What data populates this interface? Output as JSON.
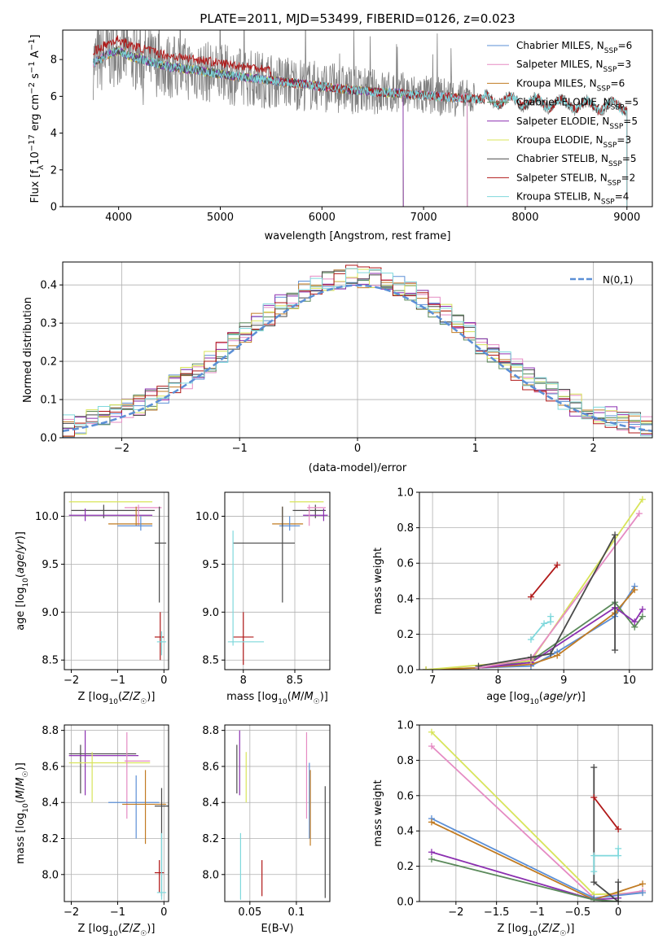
{
  "colors": {
    "Chabrier MILES": "#5b8fd6",
    "Salpeter MILES": "#e58bc3",
    "Kroupa MILES": "#c17b22",
    "Chabrier ELODIE": "#5b8a5b",
    "Salpeter ELODIE": "#8b2fb0",
    "Kroupa ELODIE": "#d8e45a",
    "Chabrier STELIB": "#4a4a4a",
    "Salpeter STELIB": "#b01818",
    "Kroupa STELIB": "#7fd8dc",
    "data": "#808080",
    "gauss": "#5b8fd6"
  },
  "chart_data": [
    {
      "id": "spectrum",
      "type": "line",
      "title": "PLATE=2011, MJD=53499, FIBERID=0126, z=0.023",
      "xlabel": "wavelength [Angstrom, rest frame]",
      "ylabel": "Flux [f_λ 10^-17 erg cm^-2 s^-1 A^-1]",
      "xlim": [
        3450,
        9250
      ],
      "ylim": [
        0,
        9.6
      ],
      "xticks": [
        4000,
        5000,
        6000,
        7000,
        8000,
        9000
      ],
      "yticks": [
        0,
        2,
        4,
        6,
        8
      ],
      "grid": false,
      "legend_position": "top-right",
      "legend": [
        {
          "label": "Chabrier MILES, N",
          "sub": "SSP",
          "suffix": "=6",
          "color": "Chabrier MILES"
        },
        {
          "label": "Salpeter MILES, N",
          "sub": "SSP",
          "suffix": "=3",
          "color": "Salpeter MILES"
        },
        {
          "label": "Kroupa MILES, N",
          "sub": "SSP",
          "suffix": "=6",
          "color": "Kroupa MILES"
        },
        {
          "label": "Chabrier ELODIE, N",
          "sub": "SSP",
          "suffix": "=5",
          "color": "Chabrier ELODIE"
        },
        {
          "label": "Salpeter ELODIE, N",
          "sub": "SSP",
          "suffix": "=5",
          "color": "Salpeter ELODIE"
        },
        {
          "label": "Kroupa ELODIE, N",
          "sub": "SSP",
          "suffix": "=3",
          "color": "Kroupa ELODIE"
        },
        {
          "label": "Chabrier STELIB, N",
          "sub": "SSP",
          "suffix": "=5",
          "color": "Chabrier STELIB"
        },
        {
          "label": "Salpeter STELIB, N",
          "sub": "SSP",
          "suffix": "=2",
          "color": "Salpeter STELIB"
        },
        {
          "label": "Kroupa STELIB, N",
          "sub": "SSP",
          "suffix": "=4",
          "color": "Kroupa STELIB"
        }
      ],
      "model_continuum": {
        "x": [
          3750,
          3900,
          4000,
          4100,
          4300,
          4500,
          4800,
          5000,
          5300,
          5600,
          5900,
          6200,
          6500,
          6800,
          7100,
          7400,
          7700,
          8000,
          8300,
          8600,
          8900,
          9000
        ],
        "y": [
          7.8,
          8.3,
          8.5,
          8.2,
          7.9,
          7.6,
          7.4,
          7.2,
          7.0,
          6.8,
          6.6,
          6.4,
          6.25,
          6.15,
          6.0,
          5.9,
          5.8,
          5.7,
          5.6,
          5.5,
          5.45,
          5.4
        ]
      },
      "model_ranges": {
        "MILES": [
          3750,
          7430
        ],
        "ELODIE": [
          3900,
          6800
        ],
        "STELIB": [
          3750,
          9000
        ]
      },
      "data_range": [
        3750,
        9000
      ]
    },
    {
      "id": "residuals",
      "type": "bar",
      "xlabel": "(data-model)/error",
      "ylabel": "Normed distribution",
      "xlim": [
        -2.5,
        2.5
      ],
      "ylim": [
        0,
        0.46
      ],
      "xticks": [
        -2,
        -1,
        0,
        1,
        2
      ],
      "yticks": [
        0.0,
        0.1,
        0.2,
        0.3,
        0.4
      ],
      "grid": true,
      "legend_position": "top-right",
      "gauss_label": "N(0,1)",
      "bin_width": 0.1,
      "bin_start": -2.5
    },
    {
      "id": "age-Z",
      "type": "scatter",
      "xlabel": "Z [log10(Z/Z☉)]",
      "ylabel": "age [log10(age/yr)]",
      "xlim": [
        -2.15,
        0.1
      ],
      "ylim": [
        8.4,
        10.25
      ],
      "xticks": [
        -2,
        -1,
        0
      ],
      "yticks": [
        8.5,
        9.0,
        9.5,
        10.0
      ],
      "grid": true,
      "points": [
        {
          "m": "Kroupa ELODIE",
          "x": -1.55,
          "y": 10.15,
          "xe": [
            -2.05,
            -0.25
          ],
          "ye": [
            10.15,
            10.15
          ]
        },
        {
          "m": "Chabrier STELIB",
          "x": -1.3,
          "y": 10.06,
          "xe": [
            -2.0,
            -0.2
          ],
          "ye": [
            9.98,
            10.12
          ]
        },
        {
          "m": "Salpeter ELODIE",
          "x": -1.7,
          "y": 10.01,
          "xe": [
            -2.05,
            -0.25
          ],
          "ye": [
            9.95,
            10.08
          ]
        },
        {
          "m": "Salpeter MILES",
          "x": -0.55,
          "y": 10.09,
          "xe": [
            -0.85,
            -0.05
          ],
          "ye": [
            9.9,
            10.12
          ]
        },
        {
          "m": "Kroupa MILES",
          "x": -0.6,
          "y": 9.92,
          "xe": [
            -1.2,
            -0.25
          ],
          "ye": [
            9.9,
            10.1
          ]
        },
        {
          "m": "Chabrier MILES",
          "x": -0.5,
          "y": 9.9,
          "xe": [
            -1.0,
            -0.25
          ],
          "ye": [
            9.85,
            10.0
          ]
        },
        {
          "m": "Chabrier STELIB",
          "x": -0.1,
          "y": 9.72,
          "xe": [
            -0.2,
            0.05
          ],
          "ye": [
            9.1,
            10.1
          ]
        },
        {
          "m": "Salpeter STELIB",
          "x": -0.08,
          "y": 8.74,
          "xe": [
            -0.2,
            0.0
          ],
          "ye": [
            8.5,
            9.0
          ]
        },
        {
          "m": "Kroupa STELIB",
          "x": -0.05,
          "y": 8.69,
          "xe": [
            -0.15,
            0.05
          ],
          "ye": [
            8.55,
            8.8
          ]
        }
      ]
    },
    {
      "id": "age-mass",
      "type": "scatter",
      "xlabel": "mass [log10(M/M☉)]",
      "ylabel": "",
      "xlim": [
        7.82,
        8.84
      ],
      "ylim": [
        8.4,
        10.25
      ],
      "xticks": [
        8.0,
        8.5
      ],
      "yticks": [
        8.5,
        9.0,
        9.5,
        10.0
      ],
      "grid": true,
      "points": [
        {
          "m": "Kroupa ELODIE",
          "x": 8.62,
          "y": 10.15,
          "xe": [
            8.45,
            8.78
          ],
          "ye": [
            10.15,
            10.15
          ]
        },
        {
          "m": "Chabrier STELIB",
          "x": 8.7,
          "y": 10.06,
          "xe": [
            8.48,
            8.8
          ],
          "ye": [
            9.98,
            10.12
          ]
        },
        {
          "m": "Salpeter ELODIE",
          "x": 8.78,
          "y": 10.01,
          "xe": [
            8.58,
            8.82
          ],
          "ye": [
            9.95,
            10.08
          ]
        },
        {
          "m": "Salpeter MILES",
          "x": 8.64,
          "y": 10.09,
          "xe": [
            8.62,
            8.8
          ],
          "ye": [
            9.9,
            10.12
          ]
        },
        {
          "m": "Kroupa MILES",
          "x": 8.38,
          "y": 9.92,
          "xe": [
            8.28,
            8.58
          ],
          "ye": [
            9.9,
            10.1
          ]
        },
        {
          "m": "Chabrier MILES",
          "x": 8.45,
          "y": 9.9,
          "xe": [
            8.35,
            8.55
          ],
          "ye": [
            9.85,
            10.0
          ]
        },
        {
          "m": "Chabrier STELIB",
          "x": 8.38,
          "y": 9.72,
          "xe": [
            7.9,
            8.5
          ],
          "ye": [
            9.1,
            10.1
          ]
        },
        {
          "m": "Salpeter STELIB",
          "x": 8.0,
          "y": 8.74,
          "xe": [
            7.9,
            8.1
          ],
          "ye": [
            8.45,
            9.0
          ]
        },
        {
          "m": "Kroupa STELIB",
          "x": 7.9,
          "y": 8.69,
          "xe": [
            7.85,
            8.2
          ],
          "ye": [
            8.65,
            9.85
          ]
        }
      ]
    },
    {
      "id": "weight-age",
      "type": "line",
      "xlabel": "age [log10(age/yr)]",
      "ylabel": "mass weight",
      "xlim": [
        6.8,
        10.35
      ],
      "ylim": [
        0,
        1.0
      ],
      "xticks": [
        7,
        8,
        9,
        10
      ],
      "yticks": [
        0.0,
        0.2,
        0.4,
        0.6,
        0.8,
        1.0
      ],
      "grid": true,
      "series": [
        {
          "m": "Chabrier MILES",
          "x": [
            6.9,
            7.7,
            8.5,
            8.9,
            9.78,
            10.08
          ],
          "y": [
            0.0,
            0.01,
            0.02,
            0.1,
            0.3,
            0.47
          ]
        },
        {
          "m": "Kroupa MILES",
          "x": [
            6.9,
            7.7,
            8.5,
            8.9,
            9.78,
            10.08
          ],
          "y": [
            0.0,
            0.01,
            0.03,
            0.08,
            0.32,
            0.45
          ]
        },
        {
          "m": "Chabrier ELODIE",
          "x": [
            7.7,
            8.5,
            9.78,
            10.08,
            10.2
          ],
          "y": [
            0.01,
            0.05,
            0.38,
            0.24,
            0.3
          ]
        },
        {
          "m": "Salpeter ELODIE",
          "x": [
            7.7,
            8.5,
            9.78,
            10.08,
            10.2
          ],
          "y": [
            0.01,
            0.04,
            0.35,
            0.27,
            0.34
          ]
        },
        {
          "m": "Kroupa ELODIE",
          "x": [
            6.9,
            8.5,
            10.2
          ],
          "y": [
            0.0,
            0.05,
            0.96
          ]
        },
        {
          "m": "Salpeter MILES",
          "x": [
            7.7,
            8.5,
            10.15
          ],
          "y": [
            0.01,
            0.06,
            0.88
          ]
        },
        {
          "m": "Chabrier STELIB",
          "x": [
            7.7,
            8.5,
            8.8,
            9.78,
            9.78
          ],
          "y": [
            0.02,
            0.07,
            0.09,
            0.76,
            0.11
          ]
        },
        {
          "m": "Salpeter STELIB",
          "x": [
            8.5,
            8.9
          ],
          "y": [
            0.41,
            0.59
          ]
        },
        {
          "m": "Kroupa STELIB",
          "x": [
            8.5,
            8.7,
            8.8,
            8.8
          ],
          "y": [
            0.17,
            0.26,
            0.27,
            0.3
          ]
        }
      ]
    },
    {
      "id": "mass-Z",
      "type": "scatter",
      "xlabel": "Z [log10(Z/Z☉)]",
      "ylabel": "mass [log10(M/M☉)]",
      "xlim": [
        -2.15,
        0.1
      ],
      "ylim": [
        7.85,
        8.83
      ],
      "xticks": [
        -2,
        -1,
        0
      ],
      "yticks": [
        8.0,
        8.2,
        8.4,
        8.6,
        8.8
      ],
      "grid": true,
      "points": [
        {
          "m": "Chabrier STELIB",
          "x": -1.8,
          "y": 8.67,
          "xe": [
            -2.05,
            -0.6
          ],
          "ye": [
            8.45,
            8.72
          ]
        },
        {
          "m": "Salpeter ELODIE",
          "x": -1.7,
          "y": 8.66,
          "xe": [
            -2.05,
            -0.55
          ],
          "ye": [
            8.44,
            8.8
          ]
        },
        {
          "m": "Kroupa ELODIE",
          "x": -1.55,
          "y": 8.62,
          "xe": [
            -2.05,
            -0.3
          ],
          "ye": [
            8.4,
            8.68
          ]
        },
        {
          "m": "Salpeter MILES",
          "x": -0.8,
          "y": 8.63,
          "xe": [
            -0.85,
            -0.3
          ],
          "ye": [
            8.31,
            8.79
          ]
        },
        {
          "m": "Chabrier MILES",
          "x": -0.6,
          "y": 8.4,
          "xe": [
            -1.2,
            -0.1
          ],
          "ye": [
            8.2,
            8.55
          ]
        },
        {
          "m": "Kroupa MILES",
          "x": -0.4,
          "y": 8.39,
          "xe": [
            -0.9,
            0.05
          ],
          "ye": [
            8.17,
            8.58
          ]
        },
        {
          "m": "Chabrier STELIB",
          "x": -0.05,
          "y": 8.38,
          "xe": [
            -0.2,
            0.1
          ],
          "ye": [
            7.88,
            8.48
          ]
        },
        {
          "m": "Salpeter STELIB",
          "x": -0.1,
          "y": 8.01,
          "xe": [
            -0.2,
            0.0
          ],
          "ye": [
            7.9,
            8.08
          ]
        },
        {
          "m": "Kroupa STELIB",
          "x": -0.05,
          "y": 7.9,
          "xe": [
            -0.15,
            0.05
          ],
          "ye": [
            7.86,
            8.23
          ]
        }
      ]
    },
    {
      "id": "mass-ebv",
      "type": "scatter",
      "xlabel": "E(B-V)",
      "ylabel": "",
      "xlim": [
        0.023,
        0.136
      ],
      "ylim": [
        7.85,
        8.83
      ],
      "xticks": [
        0.05,
        0.1
      ],
      "yticks": [
        8.0,
        8.2,
        8.4,
        8.6,
        8.8
      ],
      "grid": true,
      "points": [
        {
          "m": "Chabrier STELIB",
          "x": 0.036,
          "y": 8.6,
          "xe": [
            0.036,
            0.036
          ],
          "ye": [
            8.45,
            8.72
          ]
        },
        {
          "m": "Salpeter ELODIE",
          "x": 0.039,
          "y": 8.66,
          "xe": [
            0.039,
            0.039
          ],
          "ye": [
            8.44,
            8.8
          ]
        },
        {
          "m": "Kroupa ELODIE",
          "x": 0.046,
          "y": 8.55,
          "xe": [
            0.046,
            0.046
          ],
          "ye": [
            8.4,
            8.68
          ]
        },
        {
          "m": "Kroupa STELIB",
          "x": 0.04,
          "y": 8.0,
          "xe": [
            0.04,
            0.04
          ],
          "ye": [
            7.86,
            8.23
          ]
        },
        {
          "m": "Salpeter STELIB",
          "x": 0.063,
          "y": 8.0,
          "xe": [
            0.063,
            0.063
          ],
          "ye": [
            7.88,
            8.08
          ]
        },
        {
          "m": "Salpeter MILES",
          "x": 0.111,
          "y": 8.5,
          "xe": [
            0.111,
            0.111
          ],
          "ye": [
            8.31,
            8.79
          ]
        },
        {
          "m": "Chabrier MILES",
          "x": 0.114,
          "y": 8.4,
          "xe": [
            0.114,
            0.114
          ],
          "ye": [
            8.2,
            8.62
          ]
        },
        {
          "m": "Kroupa MILES",
          "x": 0.115,
          "y": 8.4,
          "xe": [
            0.115,
            0.115
          ],
          "ye": [
            8.16,
            8.58
          ]
        },
        {
          "m": "Chabrier STELIB",
          "x": 0.131,
          "y": 8.3,
          "xe": [
            0.131,
            0.131
          ],
          "ye": [
            7.87,
            8.49
          ]
        }
      ]
    },
    {
      "id": "weight-Z",
      "type": "line",
      "xlabel": "Z [log10(Z/Z☉)]",
      "ylabel": "mass weight",
      "xlim": [
        -2.45,
        0.42
      ],
      "ylim": [
        0,
        1.0
      ],
      "xticks": [
        -2.0,
        -1.5,
        -1.0,
        -0.5,
        0.0
      ],
      "yticks": [
        0.0,
        0.2,
        0.4,
        0.6,
        0.8,
        1.0
      ],
      "grid": true,
      "series": [
        {
          "m": "Kroupa ELODIE",
          "x": [
            -2.3,
            -0.3,
            0.3
          ],
          "y": [
            0.96,
            0.04,
            0.05
          ]
        },
        {
          "m": "Salpeter MILES",
          "x": [
            -2.3,
            -0.3,
            0.3
          ],
          "y": [
            0.88,
            0.02,
            0.06
          ]
        },
        {
          "m": "Chabrier MILES",
          "x": [
            -2.3,
            -0.3,
            0.3
          ],
          "y": [
            0.47,
            0.02,
            0.05
          ]
        },
        {
          "m": "Kroupa MILES",
          "x": [
            -2.3,
            -0.3,
            0.3
          ],
          "y": [
            0.45,
            0.01,
            0.1
          ]
        },
        {
          "m": "Salpeter ELODIE",
          "x": [
            -2.3,
            -0.3,
            0.0
          ],
          "y": [
            0.28,
            0.01,
            0.02
          ]
        },
        {
          "m": "Chabrier ELODIE",
          "x": [
            -2.3,
            -0.3,
            0.0
          ],
          "y": [
            0.24,
            0.01,
            0.0
          ]
        },
        {
          "m": "Chabrier STELIB",
          "x": [
            -0.3,
            -0.3,
            0.0,
            0.0
          ],
          "y": [
            0.76,
            0.11,
            0.0,
            0.11
          ]
        },
        {
          "m": "Salpeter STELIB",
          "x": [
            -0.3,
            0.0
          ],
          "y": [
            0.59,
            0.41
          ]
        },
        {
          "m": "Kroupa STELIB",
          "x": [
            -0.3,
            -0.3,
            0.0,
            0.0
          ],
          "y": [
            0.17,
            0.26,
            0.26,
            0.3
          ]
        }
      ]
    }
  ]
}
